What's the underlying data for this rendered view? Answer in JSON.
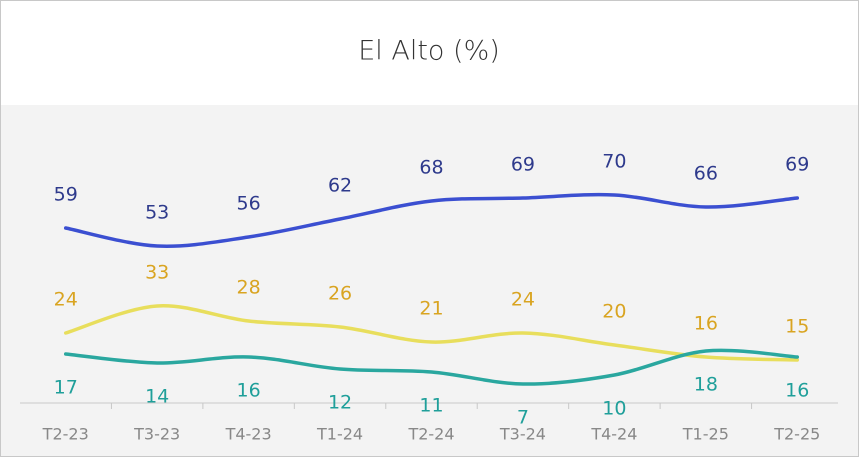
{
  "chart_data": {
    "type": "line",
    "title": "El Alto (%)",
    "categories": [
      "T2-23",
      "T3-23",
      "T4-23",
      "T1-24",
      "T2-24",
      "T3-24",
      "T4-24",
      "T1-25",
      "T2-25"
    ],
    "series": [
      {
        "color": "#3b4fd1",
        "label_color": "#2e3a8c",
        "label_position": "above",
        "values": [
          59,
          53,
          56,
          62,
          68,
          69,
          70,
          66,
          69
        ]
      },
      {
        "color": "#e8de5c",
        "label_color": "#d9a421",
        "label_position": "above",
        "values": [
          24,
          33,
          28,
          26,
          21,
          24,
          20,
          16,
          15
        ]
      },
      {
        "color": "#2aa79f",
        "label_color": "#1f9f9a",
        "label_position": "below",
        "values": [
          17,
          14,
          16,
          12,
          11,
          7,
          10,
          18,
          16
        ]
      }
    ],
    "ylim": [
      0,
      100
    ]
  }
}
